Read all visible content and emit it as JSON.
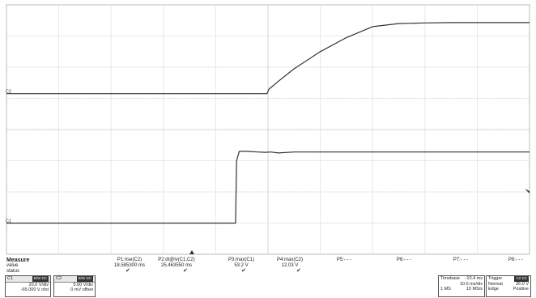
{
  "chart_data": {
    "type": "line",
    "title": "",
    "xlabel": "",
    "ylabel": "",
    "grid": true,
    "xlim": [
      0,
      10
    ],
    "ylim": [
      0,
      8
    ],
    "series": [
      {
        "values_x": [
          0,
          4.98,
          5.02,
          5.2,
          5.5,
          6.0,
          6.5,
          7.0,
          7.5,
          8.0,
          8.5,
          9.0,
          9.5,
          10
        ],
        "values_y": [
          5.15,
          5.15,
          5.3,
          5.55,
          5.95,
          6.5,
          6.95,
          7.3,
          7.4,
          7.42,
          7.43,
          7.43,
          7.43,
          7.43
        ],
        "color": "#333333"
      },
      {
        "values_x": [
          0,
          4.38,
          4.4,
          4.45,
          4.6,
          4.8,
          4.95,
          5.05,
          5.2,
          5.5,
          6.0,
          7.0,
          8.0,
          9.0,
          10
        ],
        "values_y": [
          1.0,
          1.0,
          3.0,
          3.3,
          3.3,
          3.28,
          3.27,
          3.28,
          3.25,
          3.28,
          3.28,
          3.28,
          3.28,
          3.28,
          3.28
        ],
        "color": "#333333"
      }
    ],
    "channel_markers": [
      "C2",
      "C1"
    ]
  },
  "measure": {
    "title": "Measure",
    "value_label": "value",
    "status_label": "status",
    "params": [
      {
        "name": "P1:rise(C2)",
        "value": "18.585300 ms",
        "check": "✔"
      },
      {
        "name": "P2:dt@lv(C1,C2)",
        "value": "25.463550 ms",
        "check": "✔"
      },
      {
        "name": "P3:max(C1)",
        "value": "53.2 V",
        "check": "✔"
      },
      {
        "name": "P4:max(C2)",
        "value": "12.03 V",
        "check": "✔"
      },
      {
        "name": "P5:- - -",
        "value": "",
        "check": ""
      },
      {
        "name": "P6:- - -",
        "value": "",
        "check": ""
      },
      {
        "name": "P7:- - -",
        "value": "",
        "check": ""
      },
      {
        "name": "P8:- - -",
        "value": "",
        "check": ""
      }
    ]
  },
  "channels": [
    {
      "name": "C1",
      "badge": "B/W DC",
      "vdiv": "20.0 V/div",
      "offset": "-65.000 V ofst"
    },
    {
      "name": "C2",
      "badge": "B/W DC",
      "vdiv": "5.00 V/div",
      "offset": "0 mV offset"
    }
  ],
  "timebase": {
    "label": "Timebase",
    "value": "-10.4 ms",
    "div": "10.0 ms/div",
    "points": "1 MS",
    "rate": "10 MS/s"
  },
  "trigger": {
    "label": "Trigger",
    "badge": "C2 DC",
    "mode": "Normal",
    "level": "26.0 V",
    "type": "Edge",
    "slope": "Positive"
  }
}
